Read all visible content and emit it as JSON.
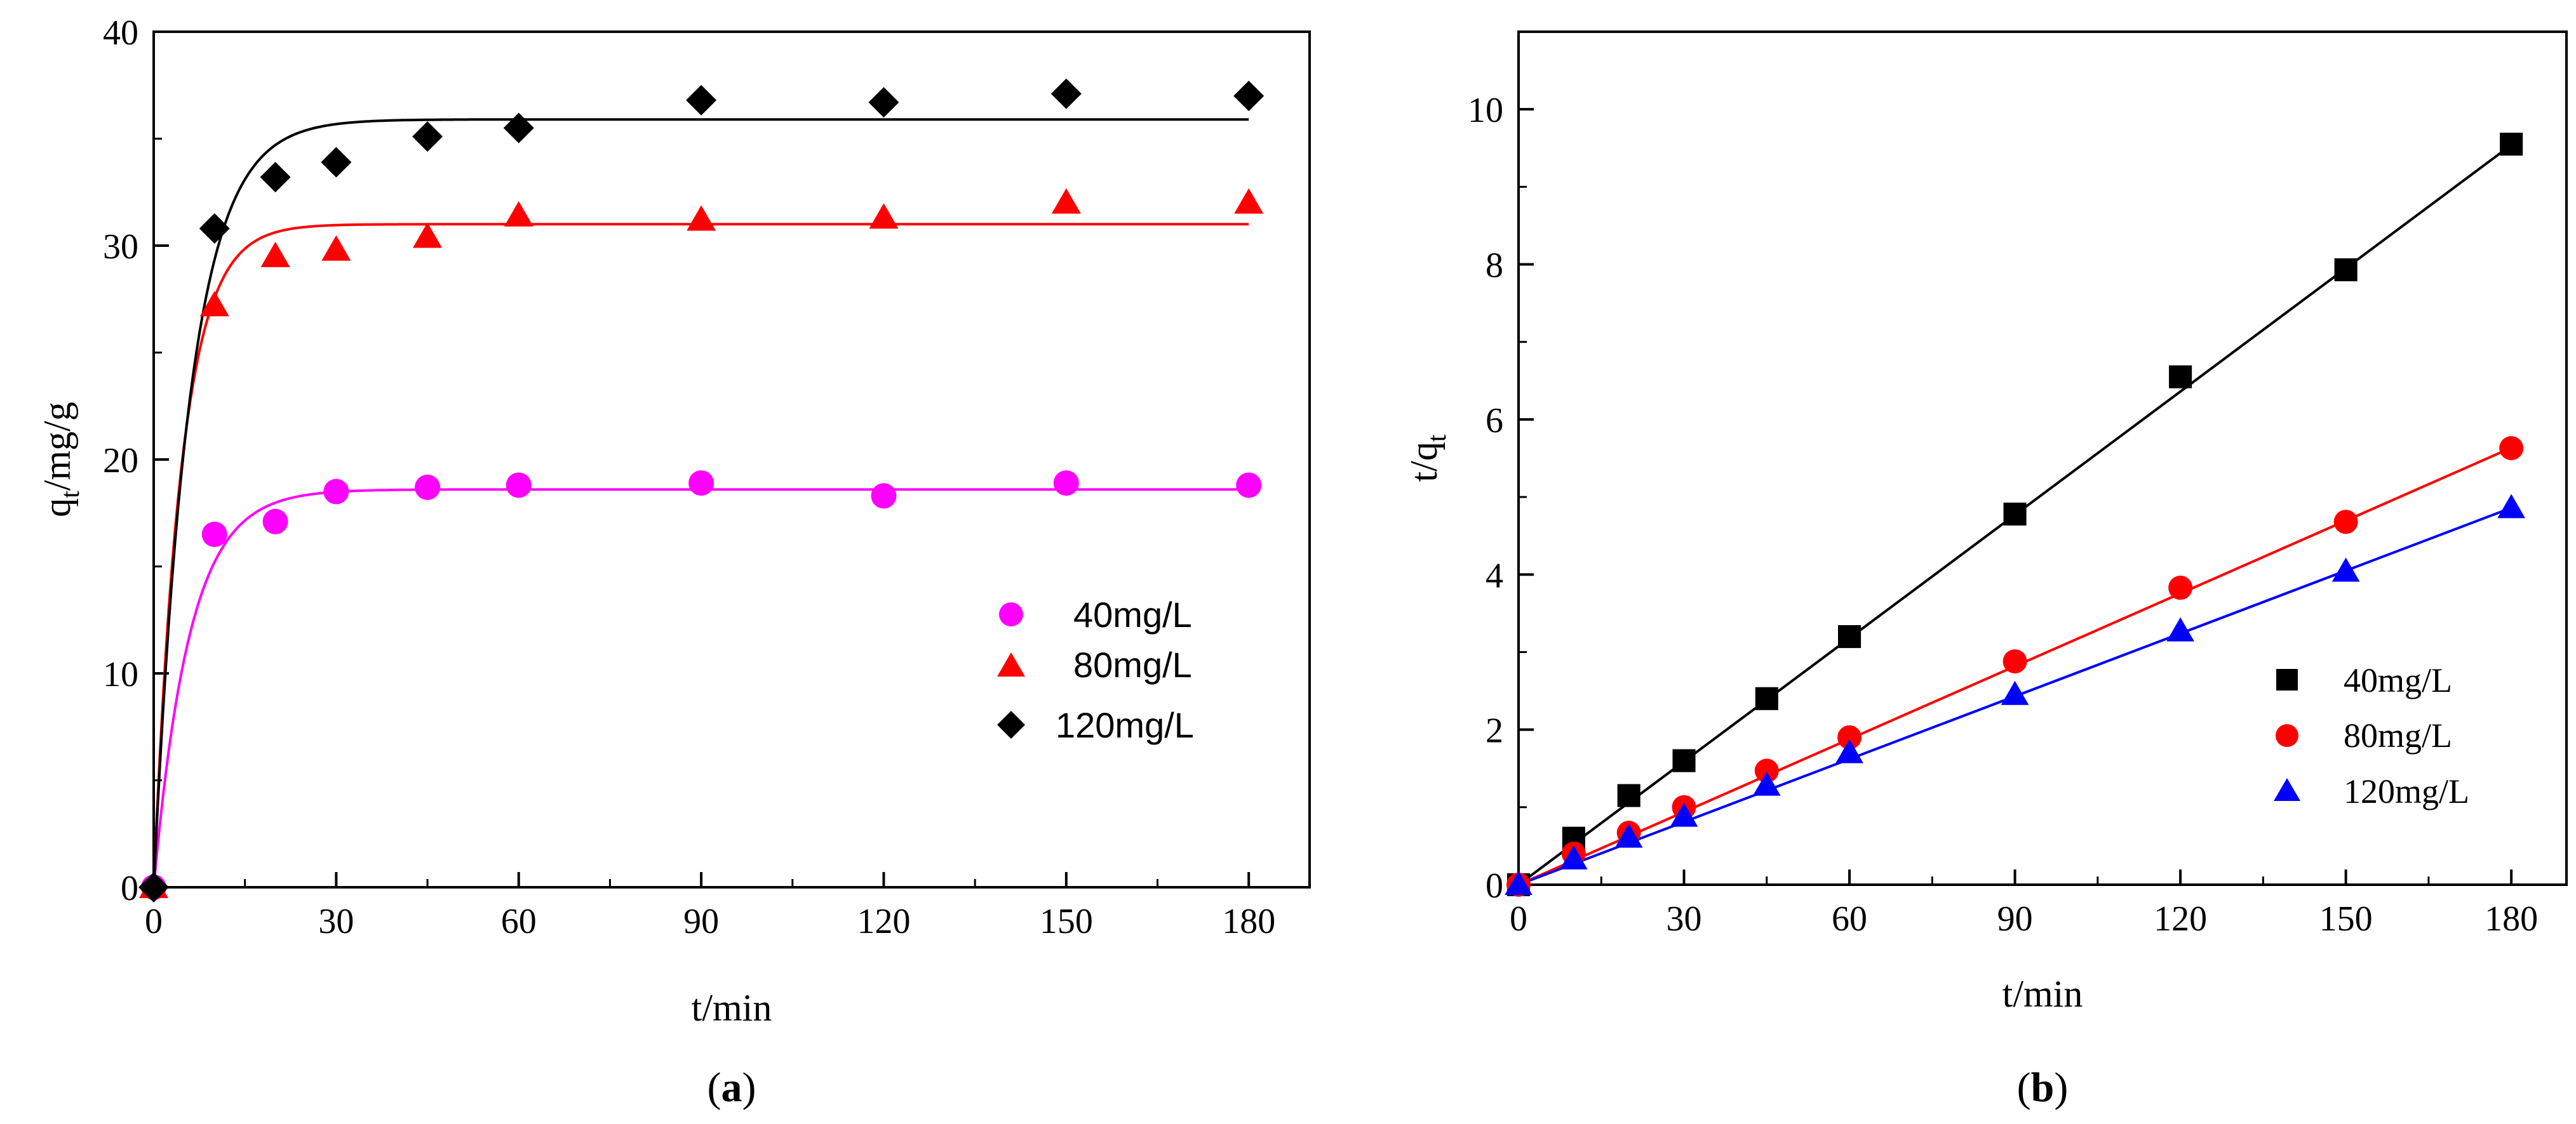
{
  "chart_data": [
    {
      "type": "scatter",
      "panel_label": {
        "open": "(",
        "letter": "a",
        "close": ")"
      },
      "xlabel": "t/min",
      "ylabel": {
        "main": "q",
        "sub": "t",
        "rest": "/mg/g"
      },
      "xlim": [
        0,
        190
      ],
      "ylim": [
        0,
        40
      ],
      "xticks": [
        0,
        30,
        60,
        90,
        120,
        150,
        180
      ],
      "yticks": [
        0,
        10,
        20,
        30,
        40
      ],
      "grid": false,
      "legend_position": "center-right",
      "series": [
        {
          "name": "40mg/L",
          "marker": "circle",
          "color": "#ff00ff",
          "points": [
            [
              0,
              0
            ],
            [
              10,
              16.5
            ],
            [
              20,
              17.1
            ],
            [
              30,
              18.5
            ],
            [
              45,
              18.7
            ],
            [
              60,
              18.8
            ],
            [
              90,
              18.9
            ],
            [
              120,
              18.3
            ],
            [
              150,
              18.9
            ],
            [
              180,
              18.8
            ]
          ],
          "fit": {
            "model": "pseudo-first-order",
            "qe": 18.6,
            "k": 0.17
          }
        },
        {
          "name": "80mg/L",
          "marker": "triangle",
          "color": "#ff0000",
          "points": [
            [
              0,
              0
            ],
            [
              10,
              27.2
            ],
            [
              20,
              29.5
            ],
            [
              30,
              29.8
            ],
            [
              45,
              30.4
            ],
            [
              60,
              31.4
            ],
            [
              90,
              31.2
            ],
            [
              120,
              31.3
            ],
            [
              150,
              32.0
            ],
            [
              180,
              32.0
            ]
          ],
          "fit": {
            "model": "pseudo-first-order",
            "qe": 31.0,
            "k": 0.22
          }
        },
        {
          "name": "120mg/L",
          "marker": "diamond",
          "color": "#000000",
          "points": [
            [
              0,
              0
            ],
            [
              10,
              30.8
            ],
            [
              20,
              33.2
            ],
            [
              30,
              33.9
            ],
            [
              45,
              35.1
            ],
            [
              60,
              35.5
            ],
            [
              90,
              36.8
            ],
            [
              120,
              36.7
            ],
            [
              150,
              37.1
            ],
            [
              180,
              37.0
            ]
          ],
          "fit": {
            "model": "pseudo-first-order",
            "qe": 35.9,
            "k": 0.17
          }
        }
      ]
    },
    {
      "type": "scatter",
      "panel_label": {
        "open": "(",
        "letter": "b",
        "close": ")"
      },
      "xlabel": "t/min",
      "ylabel": {
        "main": "t/q",
        "sub": "t",
        "rest": ""
      },
      "xlim": [
        0,
        190
      ],
      "ylim": [
        0,
        11
      ],
      "xticks": [
        0,
        30,
        60,
        90,
        120,
        150,
        180
      ],
      "yticks": [
        0,
        2,
        4,
        6,
        8,
        10
      ],
      "grid": false,
      "legend_position": "lower-right",
      "series": [
        {
          "name": "40mg/L",
          "marker": "square",
          "color": "#000000",
          "points": [
            [
              0,
              0
            ],
            [
              10,
              0.6
            ],
            [
              20,
              1.15
            ],
            [
              30,
              1.6
            ],
            [
              45,
              2.4
            ],
            [
              60,
              3.2
            ],
            [
              90,
              4.78
            ],
            [
              120,
              6.55
            ],
            [
              150,
              7.93
            ],
            [
              180,
              9.55
            ]
          ],
          "fit": {
            "model": "linear",
            "slope": 0.053,
            "intercept": 0.0
          }
        },
        {
          "name": "80mg/L",
          "marker": "circle",
          "color": "#ff0000",
          "points": [
            [
              0,
              0
            ],
            [
              10,
              0.4
            ],
            [
              20,
              0.67
            ],
            [
              30,
              1.0
            ],
            [
              45,
              1.47
            ],
            [
              60,
              1.9
            ],
            [
              90,
              2.88
            ],
            [
              120,
              3.83
            ],
            [
              150,
              4.68
            ],
            [
              180,
              5.63
            ]
          ],
          "fit": {
            "model": "linear",
            "slope": 0.0313,
            "intercept": 0.0
          }
        },
        {
          "name": "120mg/L",
          "marker": "triangle",
          "color": "#0000ff",
          "points": [
            [
              0,
              0
            ],
            [
              10,
              0.33
            ],
            [
              20,
              0.61
            ],
            [
              30,
              0.88
            ],
            [
              45,
              1.28
            ],
            [
              60,
              1.7
            ],
            [
              90,
              2.45
            ],
            [
              120,
              3.27
            ],
            [
              150,
              4.04
            ],
            [
              180,
              4.86
            ]
          ],
          "fit": {
            "model": "linear",
            "slope": 0.027,
            "intercept": 0.0
          }
        }
      ]
    }
  ]
}
